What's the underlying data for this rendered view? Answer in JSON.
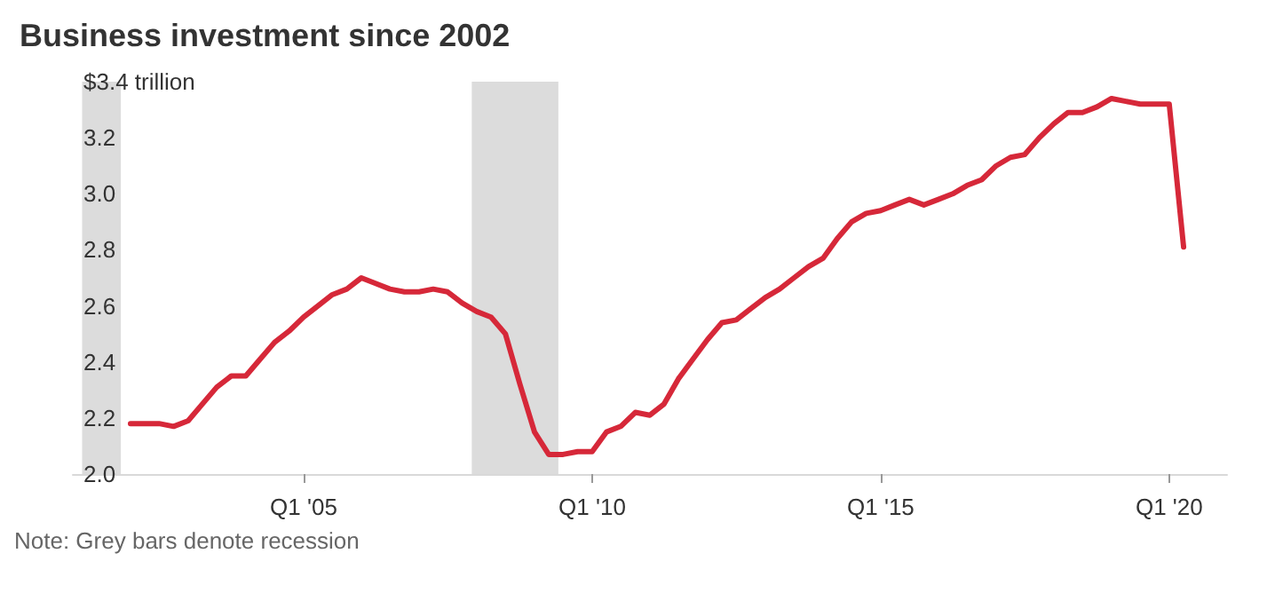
{
  "chart_data": {
    "type": "line",
    "title": "Business investment since 2002",
    "x": [
      "2002-01",
      "2002-04",
      "2002-07",
      "2002-10",
      "2003-01",
      "2003-04",
      "2003-07",
      "2003-10",
      "2004-01",
      "2004-04",
      "2004-07",
      "2004-10",
      "2005-01",
      "2005-04",
      "2005-07",
      "2005-10",
      "2006-01",
      "2006-04",
      "2006-07",
      "2006-10",
      "2007-01",
      "2007-04",
      "2007-07",
      "2007-10",
      "2008-01",
      "2008-04",
      "2008-07",
      "2008-10",
      "2009-01",
      "2009-04",
      "2009-07",
      "2009-10",
      "2010-01",
      "2010-04",
      "2010-07",
      "2010-10",
      "2011-01",
      "2011-04",
      "2011-07",
      "2011-10",
      "2012-01",
      "2012-04",
      "2012-07",
      "2012-10",
      "2013-01",
      "2013-04",
      "2013-07",
      "2013-10",
      "2014-01",
      "2014-04",
      "2014-07",
      "2014-10",
      "2015-01",
      "2015-04",
      "2015-07",
      "2015-10",
      "2016-01",
      "2016-04",
      "2016-07",
      "2016-10",
      "2017-01",
      "2017-04",
      "2017-07",
      "2017-10",
      "2018-01",
      "2018-04",
      "2018-07",
      "2018-10",
      "2019-01",
      "2019-04",
      "2019-07",
      "2019-10",
      "2020-01",
      "2020-04"
    ],
    "series": [
      {
        "color": "#d62839",
        "values": [
          2.18,
          2.18,
          2.18,
          2.17,
          2.19,
          2.25,
          2.31,
          2.35,
          2.35,
          2.41,
          2.47,
          2.51,
          2.56,
          2.6,
          2.64,
          2.66,
          2.7,
          2.68,
          2.66,
          2.65,
          2.65,
          2.66,
          2.65,
          2.61,
          2.58,
          2.56,
          2.5,
          2.32,
          2.15,
          2.07,
          2.07,
          2.08,
          2.08,
          2.15,
          2.17,
          2.22,
          2.21,
          2.25,
          2.34,
          2.41,
          2.48,
          2.54,
          2.55,
          2.59,
          2.63,
          2.66,
          2.7,
          2.74,
          2.77,
          2.84,
          2.9,
          2.93,
          2.94,
          2.96,
          2.98,
          2.96,
          2.98,
          3.0,
          3.03,
          3.05,
          3.1,
          3.13,
          3.14,
          3.2,
          3.25,
          3.29,
          3.29,
          3.31,
          3.34,
          3.33,
          3.32,
          3.32,
          3.32,
          2.81
        ]
      }
    ],
    "xlim": [
      "2001-01",
      "2021-01"
    ],
    "xticks": [
      {
        "value": "2005-01",
        "label": "Q1 '05"
      },
      {
        "value": "2010-01",
        "label": "Q1 '10"
      },
      {
        "value": "2015-01",
        "label": "Q1 '15"
      },
      {
        "value": "2020-01",
        "label": "Q1 '20"
      }
    ],
    "ylim": [
      2.0,
      3.4
    ],
    "yticks": [
      {
        "value": 2,
        "label": "2.0"
      },
      2.2,
      2.4,
      2.6,
      2.8,
      {
        "value": 3,
        "label": "3.0"
      },
      3.2,
      {
        "value": 3.4,
        "label": "$3.4 trillion"
      }
    ],
    "bands": [
      {
        "axis": "x",
        "from": "2001-03",
        "to": "2001-11",
        "color": "#dcdcdc"
      },
      {
        "axis": "x",
        "from": "2007-12",
        "to": "2009-06",
        "color": "#dcdcdc"
      }
    ],
    "annotations": [
      "Note: Grey bars denote recession"
    ],
    "grid": false,
    "marker": "none",
    "line_style": "solid"
  }
}
